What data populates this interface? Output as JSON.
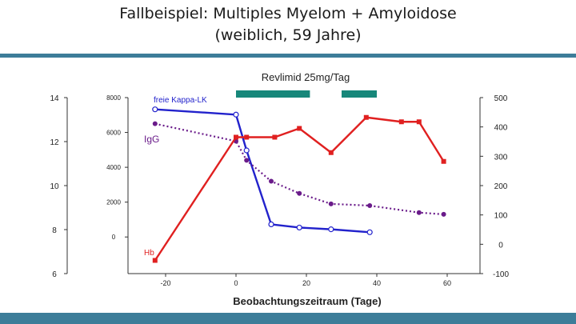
{
  "page": {
    "title_line1": "Fallbeispiel: Multiples Myelom + Amyloidose",
    "title_line2": "(weiblich, 59 Jahre)"
  },
  "colors": {
    "accent_bar": "#3d7d99",
    "teal_bar": "#17877a",
    "kappa": "#2222cc",
    "igg": "#6a1b8a",
    "hb": "#e02020",
    "axis": "#333333"
  },
  "chart_data": {
    "type": "line",
    "title": "",
    "xlabel": "Beobachtungszeitraum (Tage)",
    "x_ticks": [
      -20,
      0,
      20,
      40,
      60
    ],
    "xlim": [
      -30,
      70
    ],
    "axes": {
      "hb": {
        "ticks": [
          14,
          12,
          10,
          8,
          6
        ],
        "lim": [
          6,
          14
        ]
      },
      "igg": {
        "ticks": [
          8000,
          6000,
          4000,
          2000,
          0
        ],
        "lim": [
          -1000,
          8000
        ]
      },
      "kappa": {
        "ticks": [
          500,
          400,
          300,
          200,
          100,
          0,
          -100
        ],
        "lim": [
          -100,
          500
        ]
      }
    },
    "treatment": {
      "label": "Revlimid 25mg/Tag",
      "periods": [
        [
          0,
          21
        ],
        [
          30,
          40
        ]
      ]
    },
    "series": [
      {
        "name": "freie Kappa-LK",
        "axis": "kappa",
        "color": "#2222cc",
        "marker": "open-circle",
        "x": [
          -23,
          0,
          3,
          10,
          18,
          27,
          38
        ],
        "values": [
          460,
          442,
          320,
          68,
          57,
          51,
          41
        ]
      },
      {
        "name": "IgG",
        "axis": "igg",
        "color": "#6a1b8a",
        "marker": "filled-circle",
        "dotted": true,
        "x": [
          -23,
          0,
          3,
          10,
          18,
          27,
          38,
          52,
          59
        ],
        "values": [
          6500,
          5500,
          4400,
          3200,
          2500,
          1900,
          1800,
          1400,
          1300
        ]
      },
      {
        "name": "Hb",
        "axis": "hb",
        "color": "#e02020",
        "marker": "filled-square",
        "x": [
          -23,
          0,
          3,
          11,
          18,
          27,
          37,
          47,
          52,
          59
        ],
        "values": [
          6.6,
          12.2,
          12.2,
          12.2,
          12.6,
          11.5,
          13.1,
          12.9,
          12.9,
          11.1
        ]
      }
    ]
  }
}
